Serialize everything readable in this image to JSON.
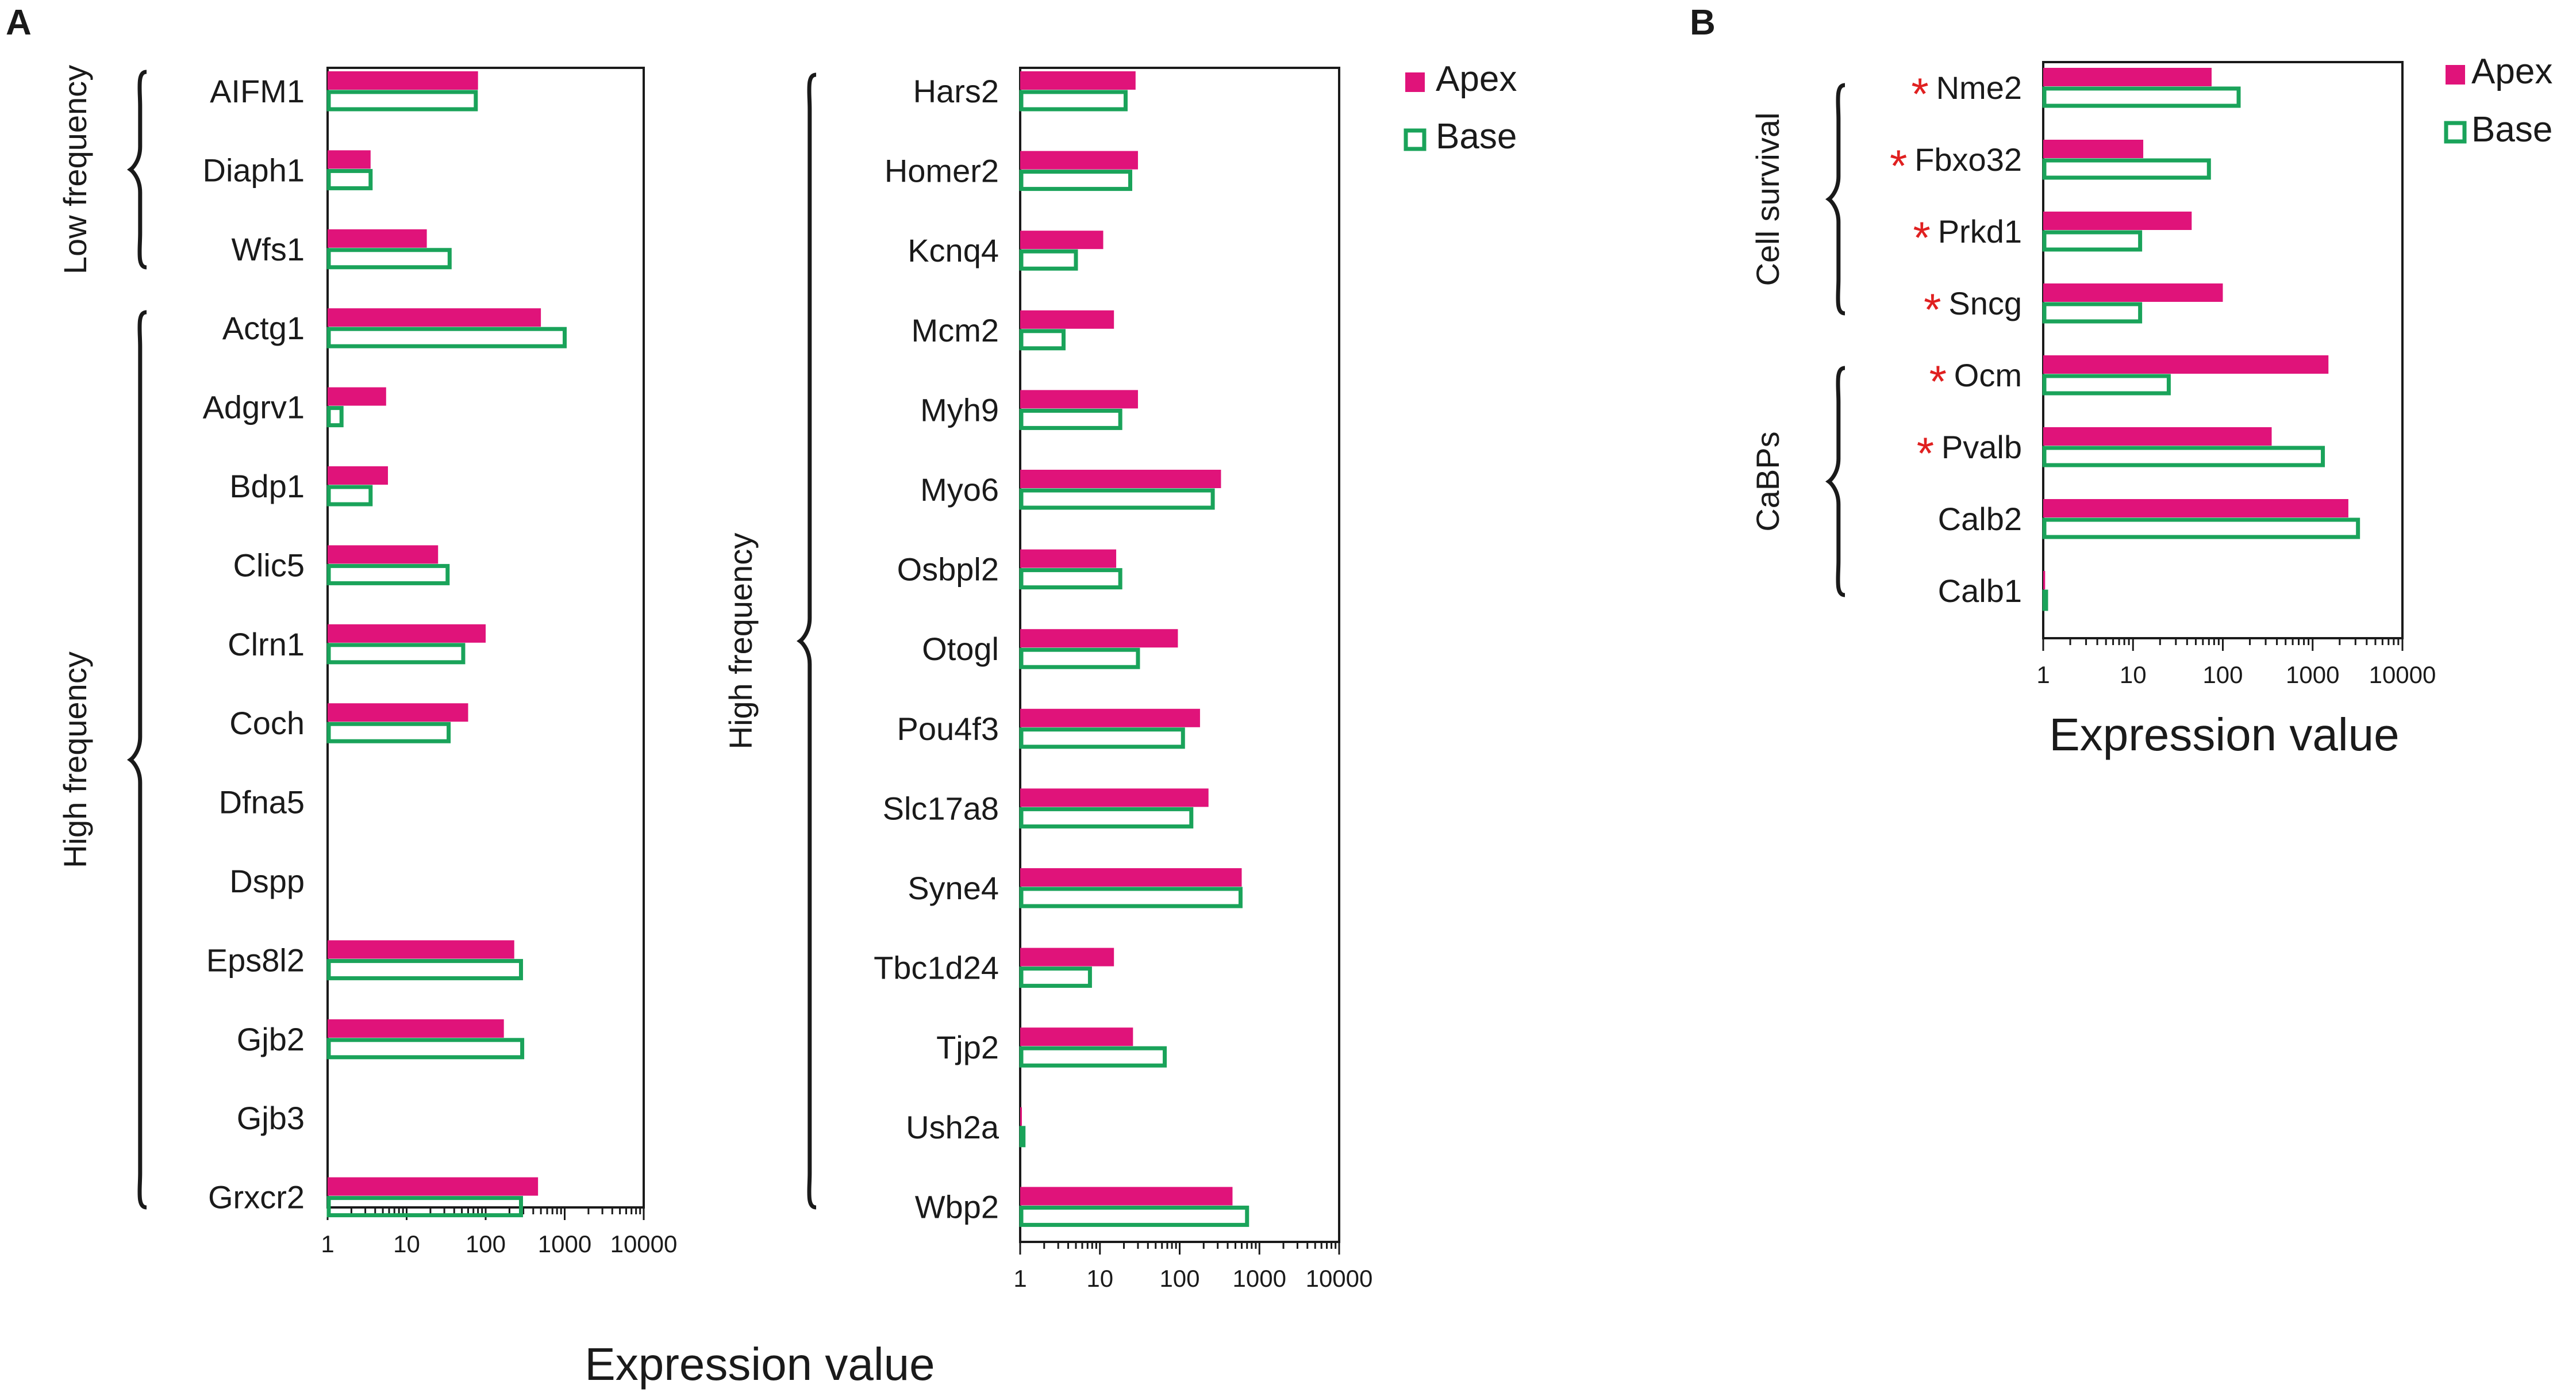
{
  "legend": {
    "apex": "Apex",
    "base": "Base"
  },
  "colors": {
    "apex": "#e0137a",
    "base": "#1aa35a",
    "asterisk": "#e02020",
    "axis": "#1a1a1a"
  },
  "chart_data": [
    {
      "type": "bar",
      "panel": "A",
      "orientation": "horizontal",
      "xscale": "log",
      "xlim": [
        1,
        10000
      ],
      "xticks": [
        "1",
        "10",
        "100",
        "1000",
        "10000"
      ],
      "xlabel": "Expression value",
      "groups": [
        {
          "label": "Low frequency",
          "categories": [
            "AIFM1",
            "Diaph1",
            "Wfs1"
          ]
        },
        {
          "label": "High frequency",
          "categories": [
            "Actg1",
            "Adgrv1",
            "Bdp1",
            "Clic5",
            "Clrn1",
            "Coch",
            "Dfna5",
            "Dspp",
            "Eps8l2",
            "Gjb2",
            "Gjb3",
            "Grxcr2"
          ]
        }
      ],
      "categories": [
        "AIFM1",
        "Diaph1",
        "Wfs1",
        "Actg1",
        "Adgrv1",
        "Bdp1",
        "Clic5",
        "Clrn1",
        "Coch",
        "Dfna5",
        "Dspp",
        "Eps8l2",
        "Gjb2",
        "Gjb3",
        "Grxcr2"
      ],
      "series": [
        {
          "name": "Apex",
          "values": [
            80,
            3.5,
            18,
            500,
            5.5,
            5.8,
            25,
            100,
            60,
            null,
            null,
            230,
            170,
            null,
            460
          ]
        },
        {
          "name": "Base",
          "values": [
            75,
            3.5,
            35,
            1000,
            1.5,
            3.5,
            33,
            52,
            34,
            null,
            null,
            280,
            290,
            null,
            280
          ]
        }
      ]
    },
    {
      "type": "bar",
      "panel": "A",
      "orientation": "horizontal",
      "xscale": "log",
      "xlim": [
        1,
        10000
      ],
      "xticks": [
        "1",
        "10",
        "100",
        "1000",
        "10000"
      ],
      "xlabel": "Expression value",
      "groups": [
        {
          "label": "High frequency",
          "categories": [
            "Hars2",
            "Homer2",
            "Kcnq4",
            "Mcm2",
            "Myh9",
            "Myo6",
            "Osbpl2",
            "Otogl",
            "Pou4f3",
            "Slc17a8",
            "Syne4",
            "Tbc1d24",
            "Tjp2",
            "Ush2a",
            "Wbp2"
          ]
        }
      ],
      "categories": [
        "Hars2",
        "Homer2",
        "Kcnq4",
        "Mcm2",
        "Myh9",
        "Myo6",
        "Osbpl2",
        "Otogl",
        "Pou4f3",
        "Slc17a8",
        "Syne4",
        "Tbc1d24",
        "Tjp2",
        "Ush2a",
        "Wbp2"
      ],
      "series": [
        {
          "name": "Apex",
          "values": [
            28,
            30,
            11,
            15,
            30,
            330,
            16,
            95,
            180,
            230,
            600,
            15,
            26,
            1.05,
            460
          ]
        },
        {
          "name": "Base",
          "values": [
            21,
            24,
            5,
            3.5,
            18,
            260,
            18,
            30,
            110,
            140,
            580,
            7.5,
            65,
            1.1,
            700
          ]
        }
      ]
    },
    {
      "type": "bar",
      "panel": "B",
      "orientation": "horizontal",
      "xscale": "log",
      "xlim": [
        1,
        10000
      ],
      "xticks": [
        "1",
        "10",
        "100",
        "1000",
        "10000"
      ],
      "xlabel": "Expression value",
      "groups": [
        {
          "label": "Cell survival",
          "categories": [
            "Nme2",
            "Fbxo32",
            "Prkd1",
            "Sncg"
          ]
        },
        {
          "label": "CaBPs",
          "categories": [
            "Ocm",
            "Pvalb",
            "Calb2",
            "Calb1"
          ]
        }
      ],
      "categories": [
        "Nme2",
        "Fbxo32",
        "Prkd1",
        "Sncg",
        "Ocm",
        "Pvalb",
        "Calb2",
        "Calb1"
      ],
      "significant": [
        true,
        true,
        true,
        true,
        true,
        true,
        false,
        false
      ],
      "significance_marker": "*",
      "series": [
        {
          "name": "Apex",
          "values": [
            75,
            13,
            45,
            100,
            1500,
            350,
            2500,
            1.05
          ]
        },
        {
          "name": "Base",
          "values": [
            150,
            70,
            12,
            12,
            25,
            1300,
            3200,
            1.05
          ]
        }
      ]
    }
  ],
  "panel_labels": [
    "A",
    "B"
  ]
}
